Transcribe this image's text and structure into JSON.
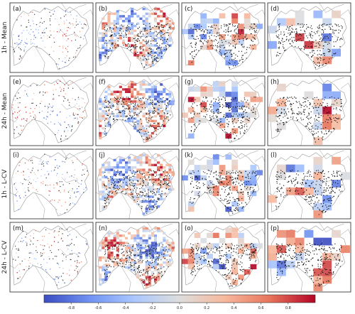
{
  "figure": {
    "row_labels": [
      "1h - Mean",
      "24h - Mean",
      "1h - L-CV",
      "24h - L-CV"
    ],
    "columns": 4,
    "panels": [
      {
        "letter": "(a)",
        "style": "stations"
      },
      {
        "letter": "(b)",
        "style": "fine-grid"
      },
      {
        "letter": "(c)",
        "style": "medium-grid"
      },
      {
        "letter": "(d)",
        "style": "coarse-grid"
      },
      {
        "letter": "(e)",
        "style": "stations"
      },
      {
        "letter": "(f)",
        "style": "fine-grid"
      },
      {
        "letter": "(g)",
        "style": "medium-grid"
      },
      {
        "letter": "(h)",
        "style": "coarse-grid"
      },
      {
        "letter": "(i)",
        "style": "stations"
      },
      {
        "letter": "(j)",
        "style": "fine-grid"
      },
      {
        "letter": "(k)",
        "style": "medium-grid"
      },
      {
        "letter": "(l)",
        "style": "coarse-grid"
      },
      {
        "letter": "(m)",
        "style": "stations"
      },
      {
        "letter": "(n)",
        "style": "fine-grid"
      },
      {
        "letter": "(o)",
        "style": "medium-grid"
      },
      {
        "letter": "(p)",
        "style": "coarse-grid"
      }
    ]
  },
  "colorbar": {
    "colormap": "coolwarm",
    "colors": [
      "#3b4cc0",
      "#6f92f3",
      "#aac7fd",
      "#dddddd",
      "#f7b89c",
      "#e7745b",
      "#b40426"
    ],
    "range": [
      -1,
      1
    ],
    "tick_labels": [
      "-0.8",
      "-0.6",
      "-0.4",
      "-0.2",
      "0.0",
      "0.2",
      "0.4",
      "0.6",
      "0.8"
    ]
  },
  "map": {
    "border_color": "#999999",
    "station_color": "#111111"
  }
}
